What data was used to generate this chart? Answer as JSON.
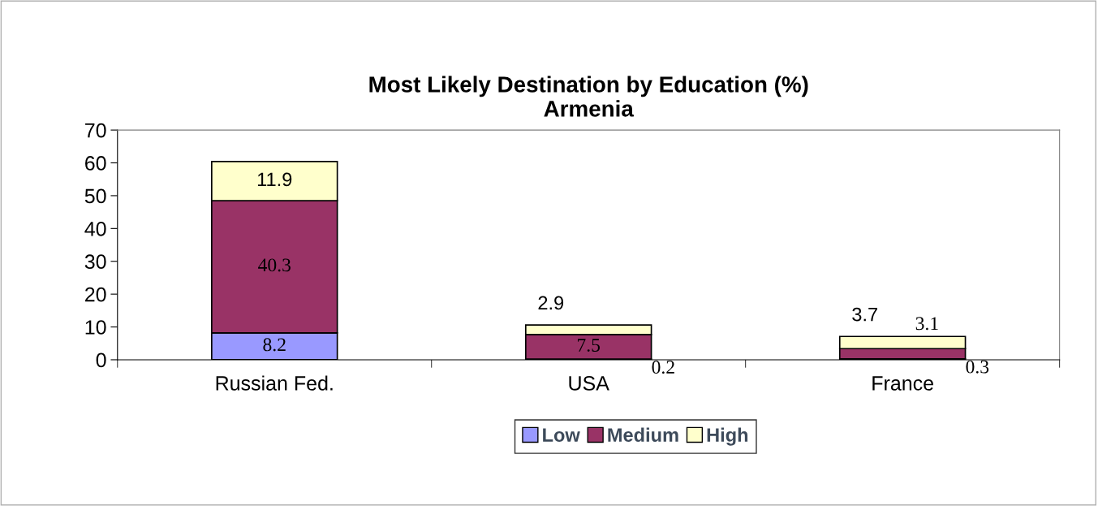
{
  "chart_data": {
    "type": "bar",
    "title": "Most Likely Destination by Education (%)\nArmenia",
    "categories": [
      "Russian Fed.",
      "USA",
      "France"
    ],
    "stacked": true,
    "series": [
      {
        "name": "Low",
        "color": "#9999ff",
        "values": [
          8.2,
          0.2,
          0.3
        ]
      },
      {
        "name": "Medium",
        "color": "#993366",
        "values": [
          40.3,
          7.5,
          3.1
        ]
      },
      {
        "name": "High",
        "color": "#ffffcc",
        "values": [
          11.9,
          2.9,
          3.7
        ]
      }
    ],
    "ylim": [
      0,
      70
    ],
    "yticks": [
      0,
      10,
      20,
      30,
      40,
      50,
      60,
      70
    ],
    "grid": false,
    "legend": "bottom",
    "data_labels": true
  }
}
